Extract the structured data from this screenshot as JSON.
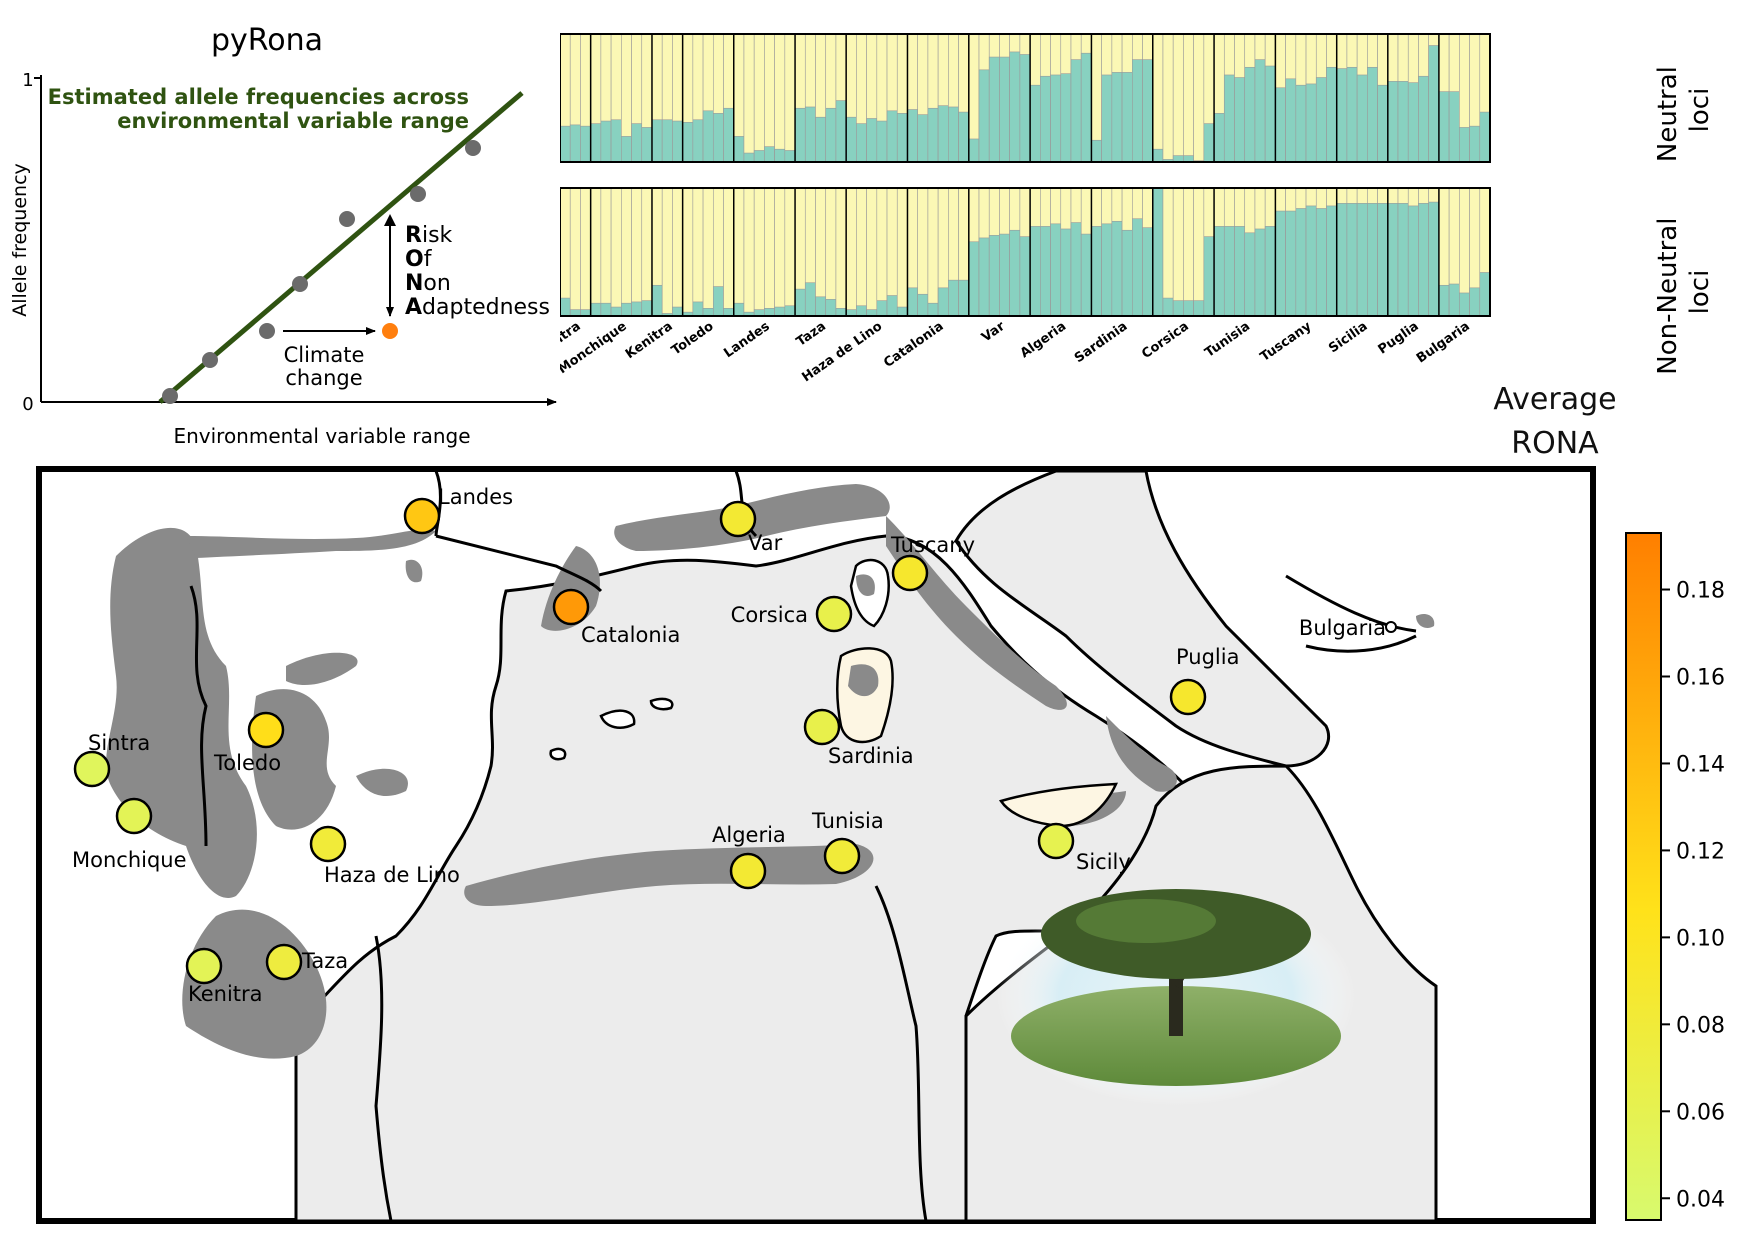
{
  "schematic": {
    "title": "pyRona",
    "y_label": "Allele frequency",
    "x_label": "Environmental variable range",
    "y_tick_top": "1",
    "y_tick_bottom": "0",
    "line_label_1": "Estimated allele frequencies across",
    "line_label_2": "environmental variable range",
    "rona_letters": [
      "R",
      "O",
      "N",
      "A"
    ],
    "rona_rest": [
      "isk",
      "f",
      "on",
      "daptedness"
    ],
    "climate_label_1": "Climate",
    "climate_label_2": "change",
    "line_color": "#2f5311",
    "point_color": "#6b6b6b",
    "future_point_color": "#ff7f0e"
  },
  "structure": {
    "row_labels": [
      [
        "Neutral",
        "loci"
      ],
      [
        "Non-Neutral",
        "loci"
      ]
    ],
    "teal": "#88d1c0",
    "yellow": "#fbf8b5",
    "populations": [
      {
        "name": "Sintra",
        "neutral": [
          0.28,
          0.29,
          0.28
        ],
        "nonneutral": [
          0.14,
          0.05,
          0.05
        ]
      },
      {
        "name": "Monchique",
        "neutral": [
          0.3,
          0.32,
          0.33,
          0.2,
          0.3,
          0.27
        ],
        "nonneutral": [
          0.1,
          0.1,
          0.07,
          0.1,
          0.11,
          0.12
        ]
      },
      {
        "name": "Kenitra",
        "neutral": [
          0.33,
          0.33,
          0.32
        ],
        "nonneutral": [
          0.24,
          0.02,
          0.07
        ]
      },
      {
        "name": "Toledo",
        "neutral": [
          0.31,
          0.33,
          0.4,
          0.38,
          0.42
        ],
        "nonneutral": [
          0.03,
          0.11,
          0.06,
          0.23,
          0.06
        ]
      },
      {
        "name": "Landes",
        "neutral": [
          0.2,
          0.07,
          0.09,
          0.12,
          0.1,
          0.09
        ],
        "nonneutral": [
          0.1,
          0.03,
          0.05,
          0.06,
          0.07,
          0.08
        ]
      },
      {
        "name": "Taza",
        "neutral": [
          0.42,
          0.43,
          0.35,
          0.42,
          0.48
        ],
        "nonneutral": [
          0.21,
          0.26,
          0.15,
          0.13,
          0.06
        ]
      },
      {
        "name": "Haza de Lino",
        "neutral": [
          0.35,
          0.3,
          0.34,
          0.32,
          0.4,
          0.38
        ],
        "nonneutral": [
          0.05,
          0.08,
          0.05,
          0.12,
          0.16,
          0.07
        ]
      },
      {
        "name": "Catalonia",
        "neutral": [
          0.41,
          0.37,
          0.42,
          0.44,
          0.43,
          0.39
        ],
        "nonneutral": [
          0.22,
          0.17,
          0.1,
          0.22,
          0.28,
          0.28
        ]
      },
      {
        "name": "Var",
        "neutral": [
          0.18,
          0.72,
          0.82,
          0.82,
          0.86,
          0.84
        ],
        "nonneutral": [
          0.58,
          0.61,
          0.63,
          0.64,
          0.67,
          0.62
        ]
      },
      {
        "name": "Algeria",
        "neutral": [
          0.6,
          0.67,
          0.68,
          0.69,
          0.8,
          0.85
        ],
        "nonneutral": [
          0.7,
          0.7,
          0.72,
          0.68,
          0.73,
          0.64
        ]
      },
      {
        "name": "Sardinia",
        "neutral": [
          0.17,
          0.68,
          0.7,
          0.7,
          0.8,
          0.8
        ],
        "nonneutral": [
          0.7,
          0.72,
          0.74,
          0.67,
          0.76,
          0.69
        ]
      },
      {
        "name": "Corsica",
        "neutral": [
          0.1,
          0.02,
          0.05,
          0.05,
          0.01,
          0.3
        ],
        "nonneutral": [
          1.0,
          0.14,
          0.12,
          0.12,
          0.12,
          0.62
        ]
      },
      {
        "name": "Tunisia",
        "neutral": [
          0.38,
          0.68,
          0.66,
          0.74,
          0.8,
          0.75
        ],
        "nonneutral": [
          0.7,
          0.7,
          0.7,
          0.65,
          0.68,
          0.7
        ]
      },
      {
        "name": "Tuscany",
        "neutral": [
          0.58,
          0.65,
          0.6,
          0.61,
          0.66,
          0.74
        ],
        "nonneutral": [
          0.82,
          0.82,
          0.84,
          0.86,
          0.84,
          0.86
        ]
      },
      {
        "name": "Sicilia",
        "neutral": [
          0.73,
          0.74,
          0.68,
          0.74,
          0.6
        ],
        "nonneutral": [
          0.88,
          0.88,
          0.88,
          0.88,
          0.88
        ]
      },
      {
        "name": "Puglia",
        "neutral": [
          0.63,
          0.63,
          0.62,
          0.67,
          0.91
        ],
        "nonneutral": [
          0.88,
          0.88,
          0.86,
          0.88,
          0.89
        ]
      },
      {
        "name": "Bulgaria",
        "neutral": [
          0.55,
          0.55,
          0.27,
          0.28,
          0.39
        ],
        "nonneutral": [
          0.24,
          0.25,
          0.18,
          0.22,
          0.34
        ]
      }
    ]
  },
  "map": {
    "sites": [
      {
        "name": "Landes",
        "rona": 0.13
      },
      {
        "name": "Var",
        "rona": 0.085
      },
      {
        "name": "Tuscany",
        "rona": 0.09
      },
      {
        "name": "Catalonia",
        "rona": 0.17
      },
      {
        "name": "Corsica",
        "rona": 0.065
      },
      {
        "name": "Bulgaria",
        "rona": null
      },
      {
        "name": "Puglia",
        "rona": 0.09
      },
      {
        "name": "Sintra",
        "rona": 0.05
      },
      {
        "name": "Toledo",
        "rona": 0.11
      },
      {
        "name": "Sardinia",
        "rona": 0.065
      },
      {
        "name": "Monchique",
        "rona": 0.055
      },
      {
        "name": "Haza de Lino",
        "rona": 0.08
      },
      {
        "name": "Algeria",
        "rona": 0.085
      },
      {
        "name": "Tunisia",
        "rona": 0.08
      },
      {
        "name": "Sicily",
        "rona": 0.06
      },
      {
        "name": "Kenitra",
        "rona": 0.055
      },
      {
        "name": "Taza",
        "rona": 0.075
      }
    ],
    "land_color": "#ffffff",
    "sea_color": "#ececec",
    "range_color": "#8a8a8a"
  },
  "colorbar": {
    "title_1": "Average",
    "title_2": "RONA",
    "ticks": [
      "0.18",
      "0.16",
      "0.14",
      "0.12",
      "0.10",
      "0.08",
      "0.06",
      "0.04"
    ],
    "vmin": 0.035,
    "vmax": 0.193,
    "color_low": "#d8fa6e",
    "color_mid": "#ffe21a",
    "color_high": "#ff7f00"
  }
}
